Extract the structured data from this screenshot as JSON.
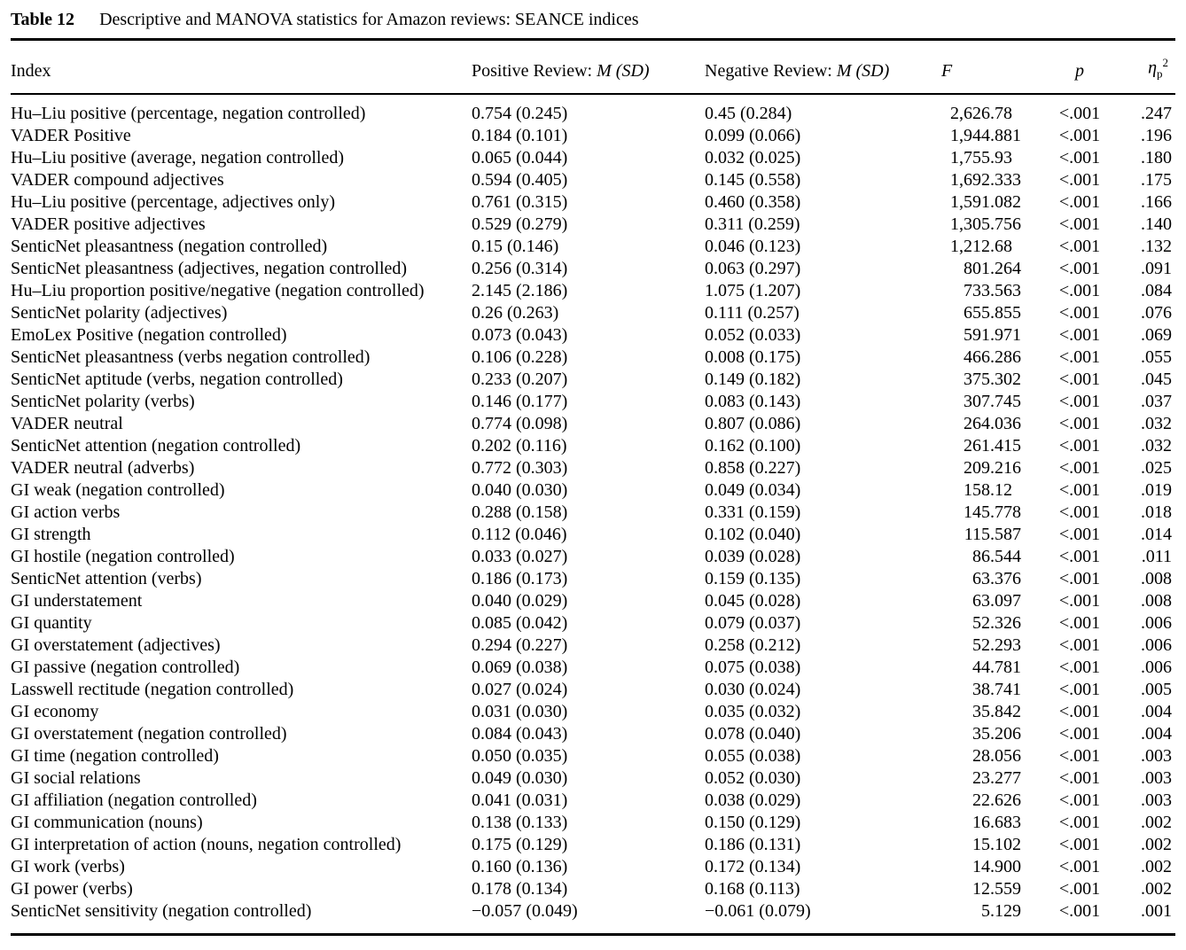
{
  "page": {
    "label": "Table 12",
    "caption": "Descriptive and MANOVA statistics for Amazon reviews: SEANCE indices"
  },
  "columns": {
    "index": "Index",
    "positive_prefix": "Positive Review:",
    "negative_prefix": "Negative Review:",
    "m": "M",
    "sd": "(SD)",
    "f": "F",
    "p": "p",
    "eta": "η",
    "eta_sub": "p",
    "eta_sup": "2"
  },
  "rows": [
    [
      "Hu–Liu positive (percentage, negation controlled)",
      "0.754 (0.245)",
      "0.45 (0.284)",
      "2,626.78",
      "<.001",
      ".247"
    ],
    [
      "VADER Positive",
      "0.184 (0.101)",
      "0.099 (0.066)",
      "1,944.881",
      "<.001",
      ".196"
    ],
    [
      "Hu–Liu positive (average, negation controlled)",
      "0.065 (0.044)",
      "0.032 (0.025)",
      "1,755.93",
      "<.001",
      ".180"
    ],
    [
      "VADER compound adjectives",
      "0.594 (0.405)",
      "0.145 (0.558)",
      "1,692.333",
      "<.001",
      ".175"
    ],
    [
      "Hu–Liu positive (percentage, adjectives only)",
      "0.761 (0.315)",
      "0.460 (0.358)",
      "1,591.082",
      "<.001",
      ".166"
    ],
    [
      "VADER positive adjectives",
      "0.529 (0.279)",
      "0.311 (0.259)",
      "1,305.756",
      "<.001",
      ".140"
    ],
    [
      "SenticNet pleasantness (negation controlled)",
      "0.15 (0.146)",
      "0.046 (0.123)",
      "1,212.68",
      "<.001",
      ".132"
    ],
    [
      "SenticNet pleasantness (adjectives, negation controlled)",
      "0.256 (0.314)",
      "0.063 (0.297)",
      "801.264",
      "<.001",
      ".091"
    ],
    [
      "Hu–Liu proportion positive/negative (negation controlled)",
      "2.145 (2.186)",
      "1.075 (1.207)",
      "733.563",
      "<.001",
      ".084"
    ],
    [
      "SenticNet polarity (adjectives)",
      "0.26 (0.263)",
      "0.111 (0.257)",
      "655.855",
      "<.001",
      ".076"
    ],
    [
      "EmoLex Positive (negation controlled)",
      "0.073 (0.043)",
      "0.052 (0.033)",
      "591.971",
      "<.001",
      ".069"
    ],
    [
      "SenticNet pleasantness (verbs negation controlled)",
      "0.106 (0.228)",
      "0.008 (0.175)",
      "466.286",
      "<.001",
      ".055"
    ],
    [
      "SenticNet aptitude (verbs, negation controlled)",
      "0.233 (0.207)",
      "0.149 (0.182)",
      "375.302",
      "<.001",
      ".045"
    ],
    [
      "SenticNet polarity (verbs)",
      "0.146 (0.177)",
      "0.083 (0.143)",
      "307.745",
      "<.001",
      ".037"
    ],
    [
      "VADER neutral",
      "0.774 (0.098)",
      "0.807 (0.086)",
      "264.036",
      "<.001",
      ".032"
    ],
    [
      "SenticNet attention (negation controlled)",
      "0.202 (0.116)",
      "0.162 (0.100)",
      "261.415",
      "<.001",
      ".032"
    ],
    [
      "VADER neutral (adverbs)",
      "0.772 (0.303)",
      "0.858 (0.227)",
      "209.216",
      "<.001",
      ".025"
    ],
    [
      "GI weak (negation controlled)",
      "0.040 (0.030)",
      "0.049 (0.034)",
      "158.12",
      "<.001",
      ".019"
    ],
    [
      "GI action verbs",
      "0.288 (0.158)",
      "0.331 (0.159)",
      "145.778",
      "<.001",
      ".018"
    ],
    [
      "GI strength",
      "0.112 (0.046)",
      "0.102 (0.040)",
      "115.587",
      "<.001",
      ".014"
    ],
    [
      "GI hostile (negation controlled)",
      "0.033 (0.027)",
      "0.039 (0.028)",
      "86.544",
      "<.001",
      ".011"
    ],
    [
      "SenticNet attention (verbs)",
      "0.186 (0.173)",
      "0.159 (0.135)",
      "63.376",
      "<.001",
      ".008"
    ],
    [
      "GI understatement",
      "0.040 (0.029)",
      "0.045 (0.028)",
      "63.097",
      "<.001",
      ".008"
    ],
    [
      "GI quantity",
      "0.085 (0.042)",
      "0.079 (0.037)",
      "52.326",
      "<.001",
      ".006"
    ],
    [
      "GI overstatement (adjectives)",
      "0.294 (0.227)",
      "0.258 (0.212)",
      "52.293",
      "<.001",
      ".006"
    ],
    [
      "GI passive (negation controlled)",
      "0.069 (0.038)",
      "0.075 (0.038)",
      "44.781",
      "<.001",
      ".006"
    ],
    [
      "Lasswell rectitude (negation controlled)",
      "0.027 (0.024)",
      "0.030 (0.024)",
      "38.741",
      "<.001",
      ".005"
    ],
    [
      "GI economy",
      "0.031 (0.030)",
      "0.035 (0.032)",
      "35.842",
      "<.001",
      ".004"
    ],
    [
      "GI overstatement (negation controlled)",
      "0.084 (0.043)",
      "0.078 (0.040)",
      "35.206",
      "<.001",
      ".004"
    ],
    [
      "GI time (negation controlled)",
      "0.050 (0.035)",
      "0.055 (0.038)",
      "28.056",
      "<.001",
      ".003"
    ],
    [
      "GI social relations",
      "0.049 (0.030)",
      "0.052 (0.030)",
      "23.277",
      "<.001",
      ".003"
    ],
    [
      "GI affiliation (negation controlled)",
      "0.041 (0.031)",
      "0.038 (0.029)",
      "22.626",
      "<.001",
      ".003"
    ],
    [
      "GI communication (nouns)",
      "0.138 (0.133)",
      "0.150 (0.129)",
      "16.683",
      "<.001",
      ".002"
    ],
    [
      "GI interpretation of action (nouns, negation controlled)",
      "0.175 (0.129)",
      "0.186 (0.131)",
      "15.102",
      "<.001",
      ".002"
    ],
    [
      "GI work (verbs)",
      "0.160 (0.136)",
      "0.172 (0.134)",
      "14.900",
      "<.001",
      ".002"
    ],
    [
      "GI power (verbs)",
      "0.178 (0.134)",
      "0.168 (0.113)",
      "12.559",
      "<.001",
      ".002"
    ],
    [
      "SenticNet sensitivity (negation controlled)",
      "−0.057 (0.049)",
      "−0.061 (0.079)",
      "5.129",
      "<.001",
      ".001"
    ]
  ]
}
